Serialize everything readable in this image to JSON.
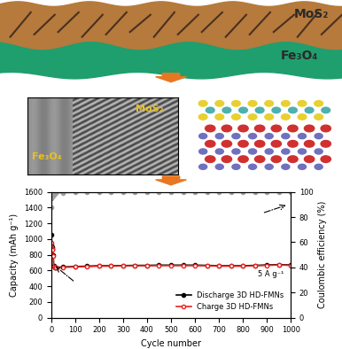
{
  "schematic": {
    "labels": [
      "MoS₂",
      "Fe₃O₄"
    ]
  },
  "tem_image": {
    "labels": [
      "MoS₂",
      "Fe₃O₄"
    ]
  },
  "chart_data": {
    "type": "line",
    "xlabel": "Cycle number",
    "ylabel": "Capacity (mAh g⁻¹)",
    "y2label": "Coulombic efficiency (%)",
    "annotations": [
      "5 A g⁻¹"
    ],
    "x": [
      1,
      2,
      3,
      5,
      8,
      10,
      15,
      20,
      50,
      100,
      150,
      200,
      250,
      300,
      350,
      400,
      450,
      500,
      550,
      600,
      650,
      700,
      750,
      800,
      850,
      900,
      950,
      1000
    ],
    "series": [
      {
        "name": "Discharge 3D HD-FMNs",
        "color": "#000000",
        "marker": "filled_circle",
        "values": [
          1050,
          930,
          900,
          880,
          800,
          660,
          640,
          640,
          645,
          650,
          655,
          660,
          660,
          662,
          665,
          665,
          668,
          668,
          668,
          668,
          665,
          660,
          660,
          660,
          665,
          670,
          675,
          670
        ]
      },
      {
        "name": "Charge 3D HD-FMNs",
        "color": "#e8231f",
        "marker": "open_circle",
        "values": [
          950,
          900,
          880,
          860,
          780,
          650,
          635,
          635,
          640,
          645,
          650,
          655,
          655,
          658,
          660,
          660,
          662,
          662,
          662,
          662,
          660,
          655,
          655,
          655,
          660,
          665,
          670,
          665
        ]
      },
      {
        "color": "#a0a0a0",
        "marker": "filled_circle",
        "axis": "y2",
        "values": [
          88,
          95,
          96,
          97,
          97,
          98,
          99,
          99,
          99,
          99.5,
          99.5,
          99.5,
          99.5,
          99.5,
          99.5,
          99.5,
          99.5,
          99.5,
          99.5,
          99.5,
          99.5,
          99.5,
          99.5,
          99.5,
          99.5,
          99.5,
          99.5,
          99.5
        ]
      }
    ],
    "xlim": [
      0,
      1000
    ],
    "xticks": [
      0,
      100,
      200,
      300,
      400,
      500,
      600,
      700,
      800,
      900,
      1000
    ],
    "ylim": [
      0,
      1600
    ],
    "yticks": [
      0,
      200,
      400,
      600,
      800,
      1000,
      1200,
      1400,
      1600
    ],
    "y2lim": [
      0,
      100
    ],
    "y2ticks": [
      0,
      20,
      40,
      60,
      80,
      100
    ],
    "legend": "lower right",
    "grid": false
  }
}
